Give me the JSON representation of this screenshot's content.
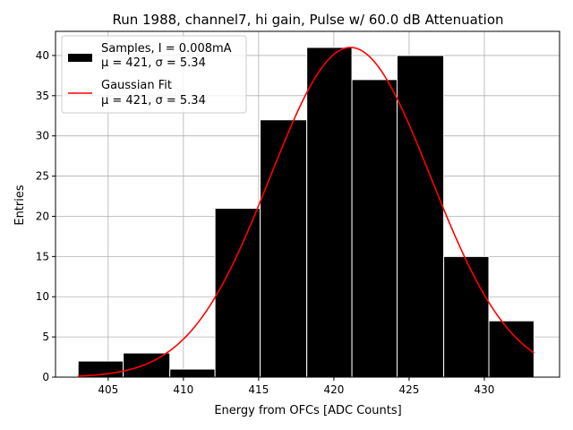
{
  "chart_data": {
    "type": "bar",
    "title": "Run 1988, channel7, hi gain, Pulse w/ 60.0 dB Attenuation",
    "xlabel": "Energy from OFCs [ADC Counts]",
    "ylabel": "Entries",
    "xlim": [
      401.5,
      435.0
    ],
    "ylim": [
      0,
      43
    ],
    "xticks": [
      405,
      410,
      415,
      420,
      425,
      430
    ],
    "yticks": [
      0,
      5,
      10,
      15,
      20,
      25,
      30,
      35,
      40
    ],
    "grid": true,
    "legend_position": "top-left",
    "bins": [
      {
        "x0": 403.0,
        "x1": 406.0,
        "count": 2
      },
      {
        "x0": 406.0,
        "x1": 409.1,
        "count": 3
      },
      {
        "x0": 409.1,
        "x1": 412.1,
        "count": 1
      },
      {
        "x0": 412.1,
        "x1": 415.1,
        "count": 21
      },
      {
        "x0": 415.1,
        "x1": 418.2,
        "count": 32
      },
      {
        "x0": 418.2,
        "x1": 421.2,
        "count": 41
      },
      {
        "x0": 421.2,
        "x1": 424.2,
        "count": 37
      },
      {
        "x0": 424.2,
        "x1": 427.3,
        "count": 40
      },
      {
        "x0": 427.3,
        "x1": 430.3,
        "count": 15
      },
      {
        "x0": 430.3,
        "x1": 433.3,
        "count": 7
      }
    ],
    "fit": {
      "type": "gaussian",
      "amplitude": 41,
      "mu": 421.1,
      "sigma": 5.34,
      "x_range": [
        403.0,
        433.3
      ]
    },
    "series": [
      {
        "name": "Samples, I = 0.008mA",
        "name_line2": "μ = 421, σ = 5.34",
        "kind": "histogram",
        "color": "#000000"
      },
      {
        "name": "Gaussian Fit",
        "name_line2": "μ = 421, σ = 5.34",
        "kind": "line",
        "color": "#ff0000"
      }
    ]
  }
}
